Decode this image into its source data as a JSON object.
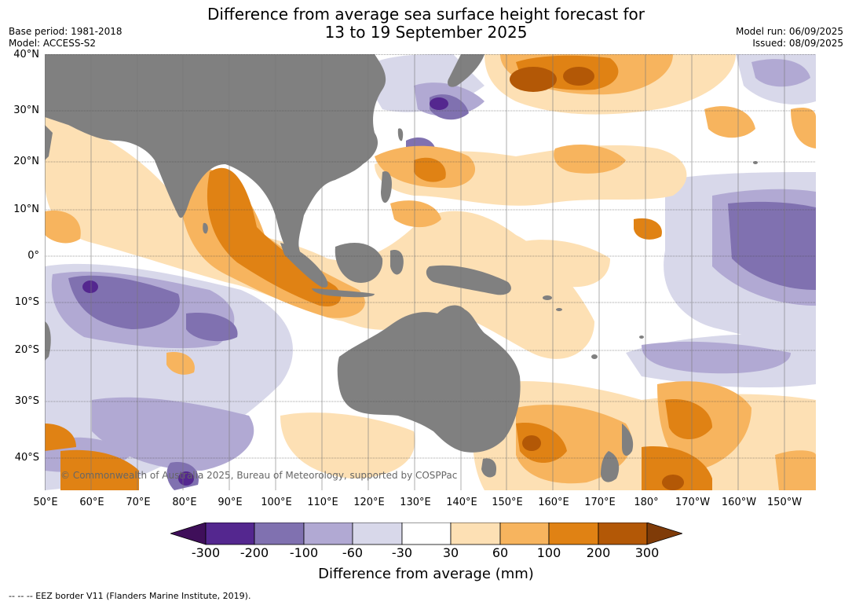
{
  "title_line1": "Difference from average sea surface height forecast for",
  "title_line2": "13 to 19 September 2025",
  "meta_left": [
    "Base period: 1981-2018",
    "Model: ACCESS-S2"
  ],
  "meta_right": [
    "Model run: 06/09/2025",
    "Issued: 08/09/2025"
  ],
  "latitude_labels": [
    "40°N",
    "30°N",
    "20°N",
    "10°N",
    "0°",
    "10°S",
    "20°S",
    "30°S",
    "40°S"
  ],
  "longitude_labels": [
    "50°E",
    "60°E",
    "70°E",
    "80°E",
    "90°E",
    "100°E",
    "110°E",
    "120°E",
    "130°E",
    "140°E",
    "150°E",
    "160°E",
    "170°E",
    "180°",
    "170°W",
    "160°W",
    "150°W"
  ],
  "copyright": "© Commonwealth of Australia 2025, Bureau of Meteorology, supported by COSPPac",
  "colorbar": {
    "ticks": [
      "-300",
      "-200",
      "-100",
      "-60",
      "-30",
      "30",
      "60",
      "100",
      "200",
      "300"
    ],
    "colors": [
      "#3f0f5a",
      "#54278f",
      "#8071b0",
      "#b1a9d3",
      "#d8d8ea",
      "#ffffff",
      "#fde0b4",
      "#f7b45e",
      "#e08214",
      "#b35806",
      "#7f3b08"
    ],
    "label": "Difference from average (mm)"
  },
  "footnote": "--  --  -- EEZ border V11 (Flanders Marine Institute, 2019).",
  "colors": {
    "land": "#808080",
    "ocean_background": "#ffffff"
  }
}
